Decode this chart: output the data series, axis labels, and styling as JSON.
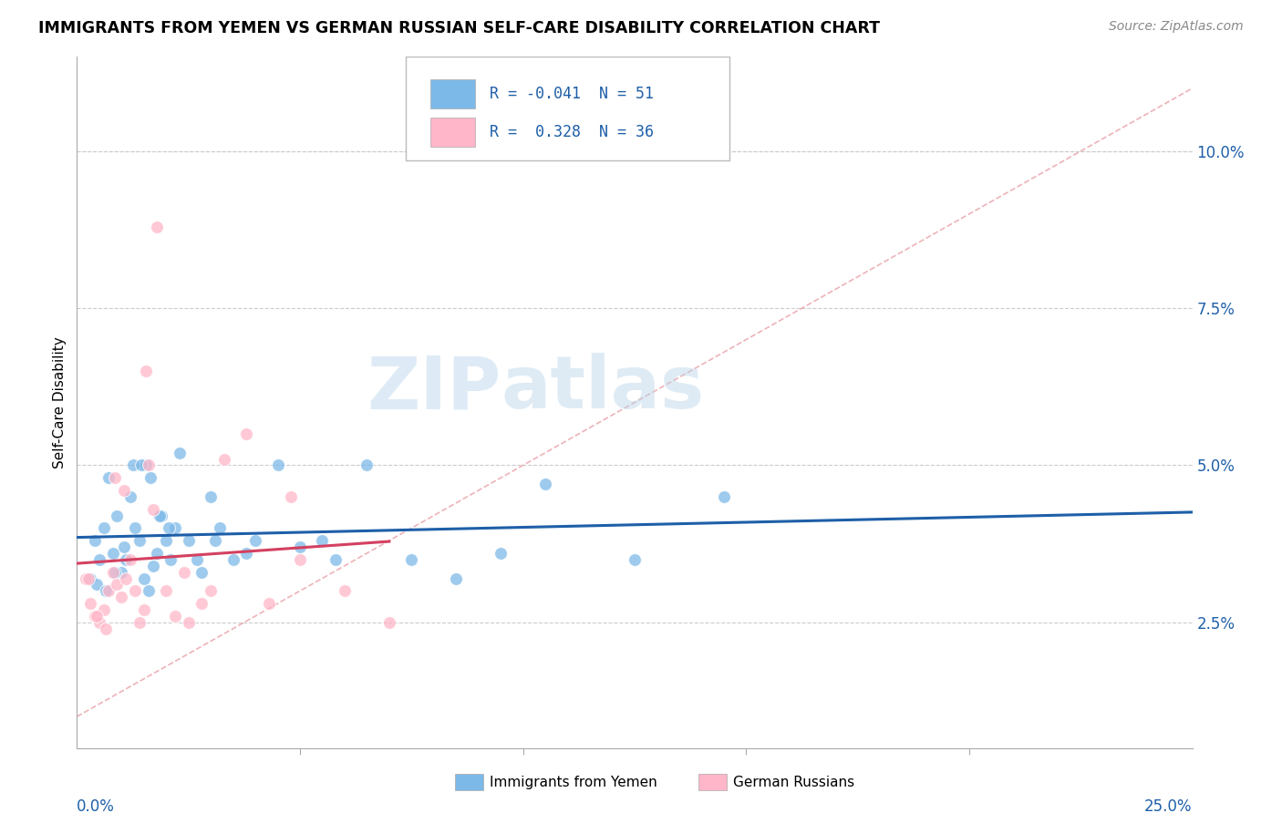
{
  "title": "IMMIGRANTS FROM YEMEN VS GERMAN RUSSIAN SELF-CARE DISABILITY CORRELATION CHART",
  "source": "Source: ZipAtlas.com",
  "ylabel": "Self-Care Disability",
  "ytick_vals": [
    2.5,
    5.0,
    7.5,
    10.0
  ],
  "xlim": [
    0.0,
    25.0
  ],
  "ylim": [
    0.5,
    11.5
  ],
  "y_data_min": 0.5,
  "y_data_max": 11.5,
  "legend_blue_r": "-0.041",
  "legend_blue_n": "51",
  "legend_pink_r": "0.328",
  "legend_pink_n": "36",
  "legend_label_blue": "Immigrants from Yemen",
  "legend_label_pink": "German Russians",
  "watermark_zip": "ZIP",
  "watermark_atlas": "atlas",
  "blue_color": "#7cb9e8",
  "pink_color": "#ffb6c8",
  "blue_line_color": "#1e5fa8",
  "pink_line_color": "#d44060",
  "diag_line_color": "#e8a0a8",
  "grid_color": "#cccccc",
  "blue_scatter_x": [
    0.4,
    0.5,
    0.6,
    0.7,
    0.8,
    0.9,
    1.0,
    1.1,
    1.2,
    1.3,
    1.4,
    1.5,
    1.55,
    1.6,
    1.7,
    1.8,
    1.9,
    2.0,
    2.1,
    2.2,
    2.3,
    2.5,
    2.7,
    2.8,
    3.0,
    3.1,
    3.2,
    3.5,
    4.0,
    4.5,
    5.0,
    5.5,
    5.8,
    6.5,
    7.5,
    8.5,
    9.5,
    10.5,
    12.5,
    14.5,
    0.3,
    0.45,
    0.65,
    0.85,
    1.05,
    1.25,
    1.45,
    1.65,
    1.85,
    2.05,
    3.8
  ],
  "blue_scatter_y": [
    3.8,
    3.5,
    4.0,
    4.8,
    3.6,
    4.2,
    3.3,
    3.5,
    4.5,
    4.0,
    3.8,
    3.2,
    5.0,
    3.0,
    3.4,
    3.6,
    4.2,
    3.8,
    3.5,
    4.0,
    5.2,
    3.8,
    3.5,
    3.3,
    4.5,
    3.8,
    4.0,
    3.5,
    3.8,
    5.0,
    3.7,
    3.8,
    3.5,
    5.0,
    3.5,
    3.2,
    3.6,
    4.7,
    3.5,
    4.5,
    3.2,
    3.1,
    3.0,
    3.3,
    3.7,
    5.0,
    5.0,
    4.8,
    4.2,
    4.0,
    3.6
  ],
  "pink_scatter_x": [
    0.2,
    0.3,
    0.4,
    0.5,
    0.6,
    0.7,
    0.8,
    0.9,
    1.0,
    1.1,
    1.2,
    1.3,
    1.4,
    1.5,
    1.6,
    1.7,
    1.8,
    2.0,
    2.2,
    2.4,
    2.8,
    3.0,
    3.3,
    3.8,
    4.3,
    5.0,
    6.0,
    0.25,
    0.45,
    0.65,
    0.85,
    1.05,
    1.55,
    2.5,
    4.8,
    7.0
  ],
  "pink_scatter_y": [
    3.2,
    2.8,
    2.6,
    2.5,
    2.7,
    3.0,
    3.3,
    3.1,
    2.9,
    3.2,
    3.5,
    3.0,
    2.5,
    2.7,
    5.0,
    4.3,
    8.8,
    3.0,
    2.6,
    3.3,
    2.8,
    3.0,
    5.1,
    5.5,
    2.8,
    3.5,
    3.0,
    3.2,
    2.6,
    2.4,
    4.8,
    4.6,
    6.5,
    2.5,
    4.5,
    2.5
  ]
}
